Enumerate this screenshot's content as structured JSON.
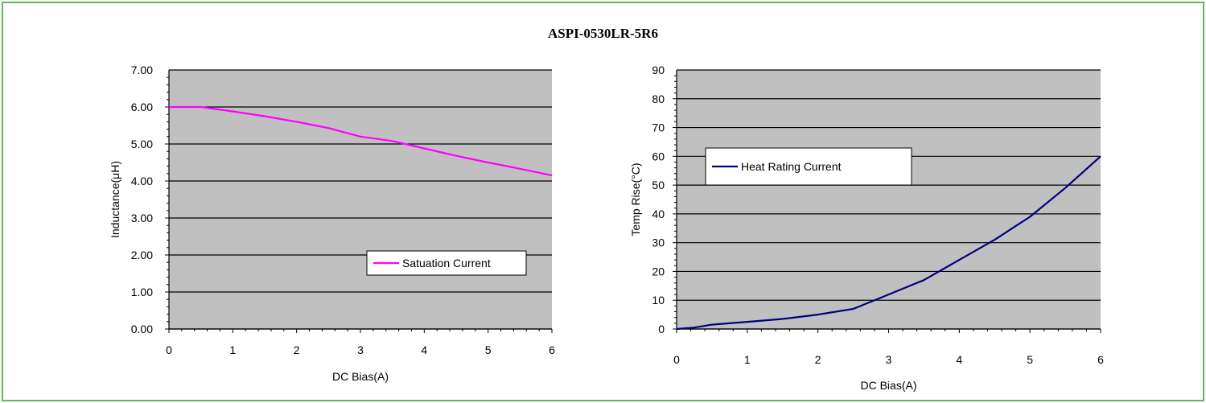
{
  "title": "ASPI-0530LR-5R6",
  "colors": {
    "frame": "#5cb85c",
    "plot_bg": "#c0c0c0"
  },
  "chart_data": [
    {
      "type": "line",
      "xlabel": "DC Bias(A)",
      "ylabel": "Inductance(μH)",
      "xlim": [
        0,
        6
      ],
      "ylim": [
        0,
        7
      ],
      "x_ticks": [
        "0",
        "1",
        "2",
        "3",
        "4",
        "5",
        "6"
      ],
      "y_ticks": [
        "0.00",
        "1.00",
        "2.00",
        "3.00",
        "4.00",
        "5.00",
        "6.00",
        "7.00"
      ],
      "grid": true,
      "legend": "center-right",
      "series": [
        {
          "name": "Satuation Current",
          "color": "#ff00ff",
          "x": [
            0,
            0.5,
            1,
            1.5,
            2,
            2.5,
            3,
            3.5,
            4,
            4.5,
            5,
            5.5,
            6
          ],
          "y": [
            6.0,
            6.0,
            5.88,
            5.75,
            5.6,
            5.43,
            5.2,
            5.08,
            4.88,
            4.68,
            4.5,
            4.33,
            4.15
          ]
        }
      ]
    },
    {
      "type": "line",
      "xlabel": "DC Bias(A)",
      "ylabel": "Temp Rise(°C)",
      "xlim": [
        0,
        6
      ],
      "ylim": [
        0,
        90
      ],
      "x_ticks": [
        "0",
        "1",
        "2",
        "3",
        "4",
        "5",
        "6"
      ],
      "y_ticks": [
        "0",
        "10",
        "20",
        "30",
        "40",
        "50",
        "60",
        "70",
        "80",
        "90"
      ],
      "grid": true,
      "legend": "top-left",
      "series": [
        {
          "name": "Heat Rating Current",
          "color": "#000080",
          "x": [
            0,
            0.25,
            0.5,
            1,
            1.5,
            2,
            2.5,
            3,
            3.5,
            4,
            4.5,
            5,
            5.5,
            6
          ],
          "y": [
            0,
            0.5,
            1.5,
            2.5,
            3.5,
            5,
            7,
            12,
            17,
            24,
            31,
            39,
            49,
            60
          ]
        }
      ]
    }
  ]
}
